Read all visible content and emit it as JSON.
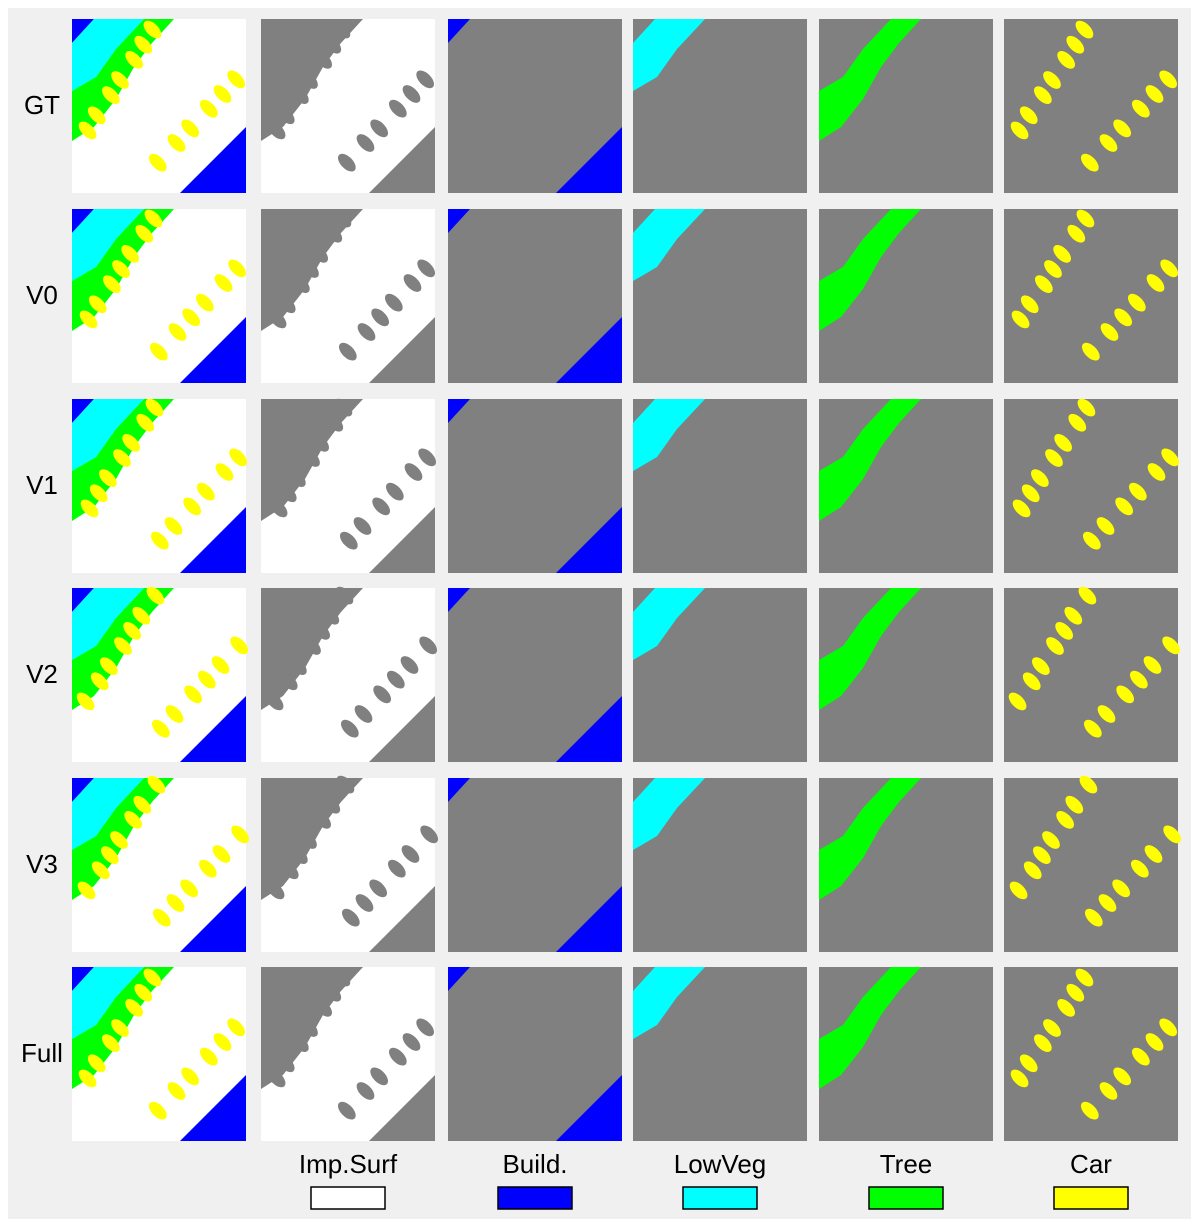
{
  "row_labels": [
    "GT",
    "V0",
    "V1",
    "V2",
    "V3",
    "Full"
  ],
  "legend": [
    {
      "label": "Imp.Surf",
      "color": "#ffffff"
    },
    {
      "label": "Build.",
      "color": "#0000ff"
    },
    {
      "label": "LowVeg",
      "color": "#00ffff"
    },
    {
      "label": "Tree",
      "color": "#00ff00"
    },
    {
      "label": "Car",
      "color": "#ffff00"
    }
  ]
}
